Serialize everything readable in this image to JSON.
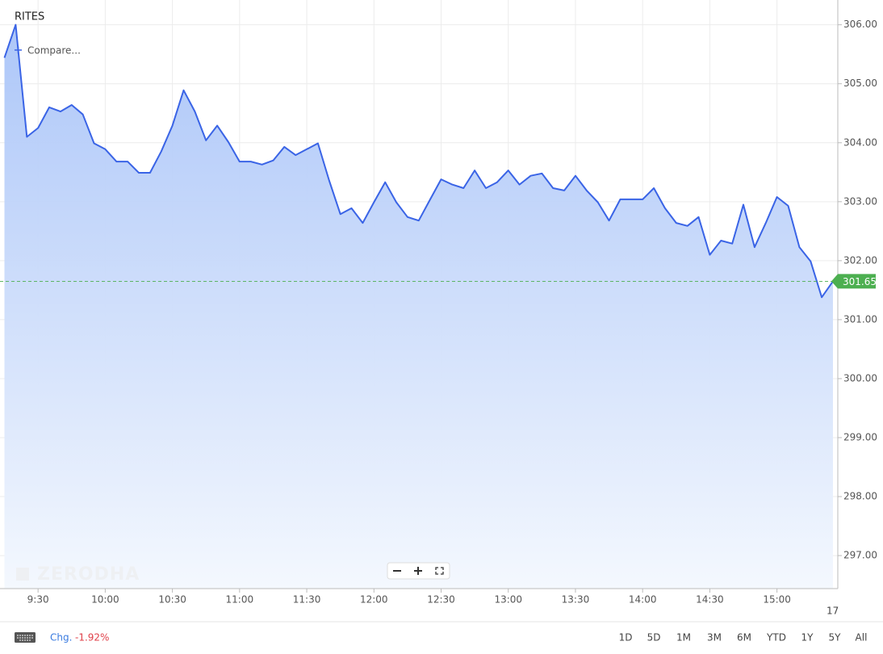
{
  "header": {
    "symbol": "RITES",
    "compare": "Compare...",
    "watermark": "ZERODHA"
  },
  "chart_data": {
    "type": "line",
    "x": [
      "9:15",
      "9:20",
      "9:25",
      "9:30",
      "9:35",
      "9:40",
      "9:45",
      "9:50",
      "9:55",
      "10:00",
      "10:05",
      "10:10",
      "10:15",
      "10:20",
      "10:25",
      "10:30",
      "10:35",
      "10:40",
      "10:45",
      "10:50",
      "10:55",
      "11:00",
      "11:05",
      "11:10",
      "11:15",
      "11:20",
      "11:25",
      "11:30",
      "11:35",
      "11:40",
      "11:45",
      "11:50",
      "11:55",
      "12:00",
      "12:05",
      "12:10",
      "12:15",
      "12:20",
      "12:25",
      "12:30",
      "12:35",
      "12:40",
      "12:45",
      "12:50",
      "12:55",
      "13:00",
      "13:05",
      "13:10",
      "13:15",
      "13:20",
      "13:25",
      "13:30",
      "13:35",
      "13:40",
      "13:45",
      "13:50",
      "13:55",
      "14:00",
      "14:05",
      "14:10",
      "14:15",
      "14:20",
      "14:25",
      "14:30",
      "14:35",
      "14:40",
      "14:45",
      "14:50",
      "14:55",
      "15:00",
      "15:05",
      "15:10",
      "15:15",
      "15:20",
      "15:25"
    ],
    "values": [
      305.44,
      306.0,
      304.1,
      304.25,
      304.6,
      304.53,
      304.64,
      304.48,
      303.99,
      303.89,
      303.68,
      303.68,
      303.49,
      303.49,
      303.85,
      304.29,
      304.89,
      304.53,
      304.04,
      304.29,
      304.01,
      303.68,
      303.68,
      303.63,
      303.7,
      303.93,
      303.79,
      303.89,
      303.99,
      303.36,
      302.79,
      302.89,
      302.64,
      302.99,
      303.33,
      302.99,
      302.74,
      302.68,
      303.03,
      303.38,
      303.29,
      303.23,
      303.53,
      303.23,
      303.33,
      303.53,
      303.29,
      303.44,
      303.48,
      303.23,
      303.19,
      303.44,
      303.19,
      302.99,
      302.68,
      303.04,
      303.04,
      303.04,
      303.23,
      302.89,
      302.64,
      302.59,
      302.74,
      302.1,
      302.34,
      302.29,
      302.95,
      302.23,
      302.64,
      303.08,
      302.93,
      302.23,
      301.99,
      301.38,
      301.65
    ],
    "color": "#3a64e6",
    "fill_color": "#a9c4f8",
    "xlim": [
      "9:13",
      "15:25"
    ],
    "ylim": [
      296.44,
      306.42
    ],
    "xticks": [
      "9:30",
      "10:00",
      "10:30",
      "11:00",
      "11:30",
      "12:00",
      "12:30",
      "13:00",
      "13:30",
      "14:00",
      "14:30",
      "15:00"
    ],
    "yticks": [
      {
        "value": 297,
        "label": "297.00"
      },
      {
        "value": 298,
        "label": "298.00"
      },
      {
        "value": 299,
        "label": "299.00"
      },
      {
        "value": 300,
        "label": "300.00"
      },
      {
        "value": 301,
        "label": "301.00"
      },
      {
        "value": 302,
        "label": "302.00"
      },
      {
        "value": 303,
        "label": "303.00"
      },
      {
        "value": 304,
        "label": "304.00"
      },
      {
        "value": 305,
        "label": "305.00"
      },
      {
        "value": 306,
        "label": "306.00"
      }
    ],
    "grid": true,
    "last_price": 301.65,
    "last_price_color": "#4caf50",
    "next_day_label": "17"
  },
  "footer": {
    "change_label": "Chg.",
    "change": -1.92,
    "change_value_label": "-1.92%",
    "ranges": [
      "1D",
      "5D",
      "1M",
      "3M",
      "6M",
      "YTD",
      "1Y",
      "5Y",
      "All"
    ]
  }
}
